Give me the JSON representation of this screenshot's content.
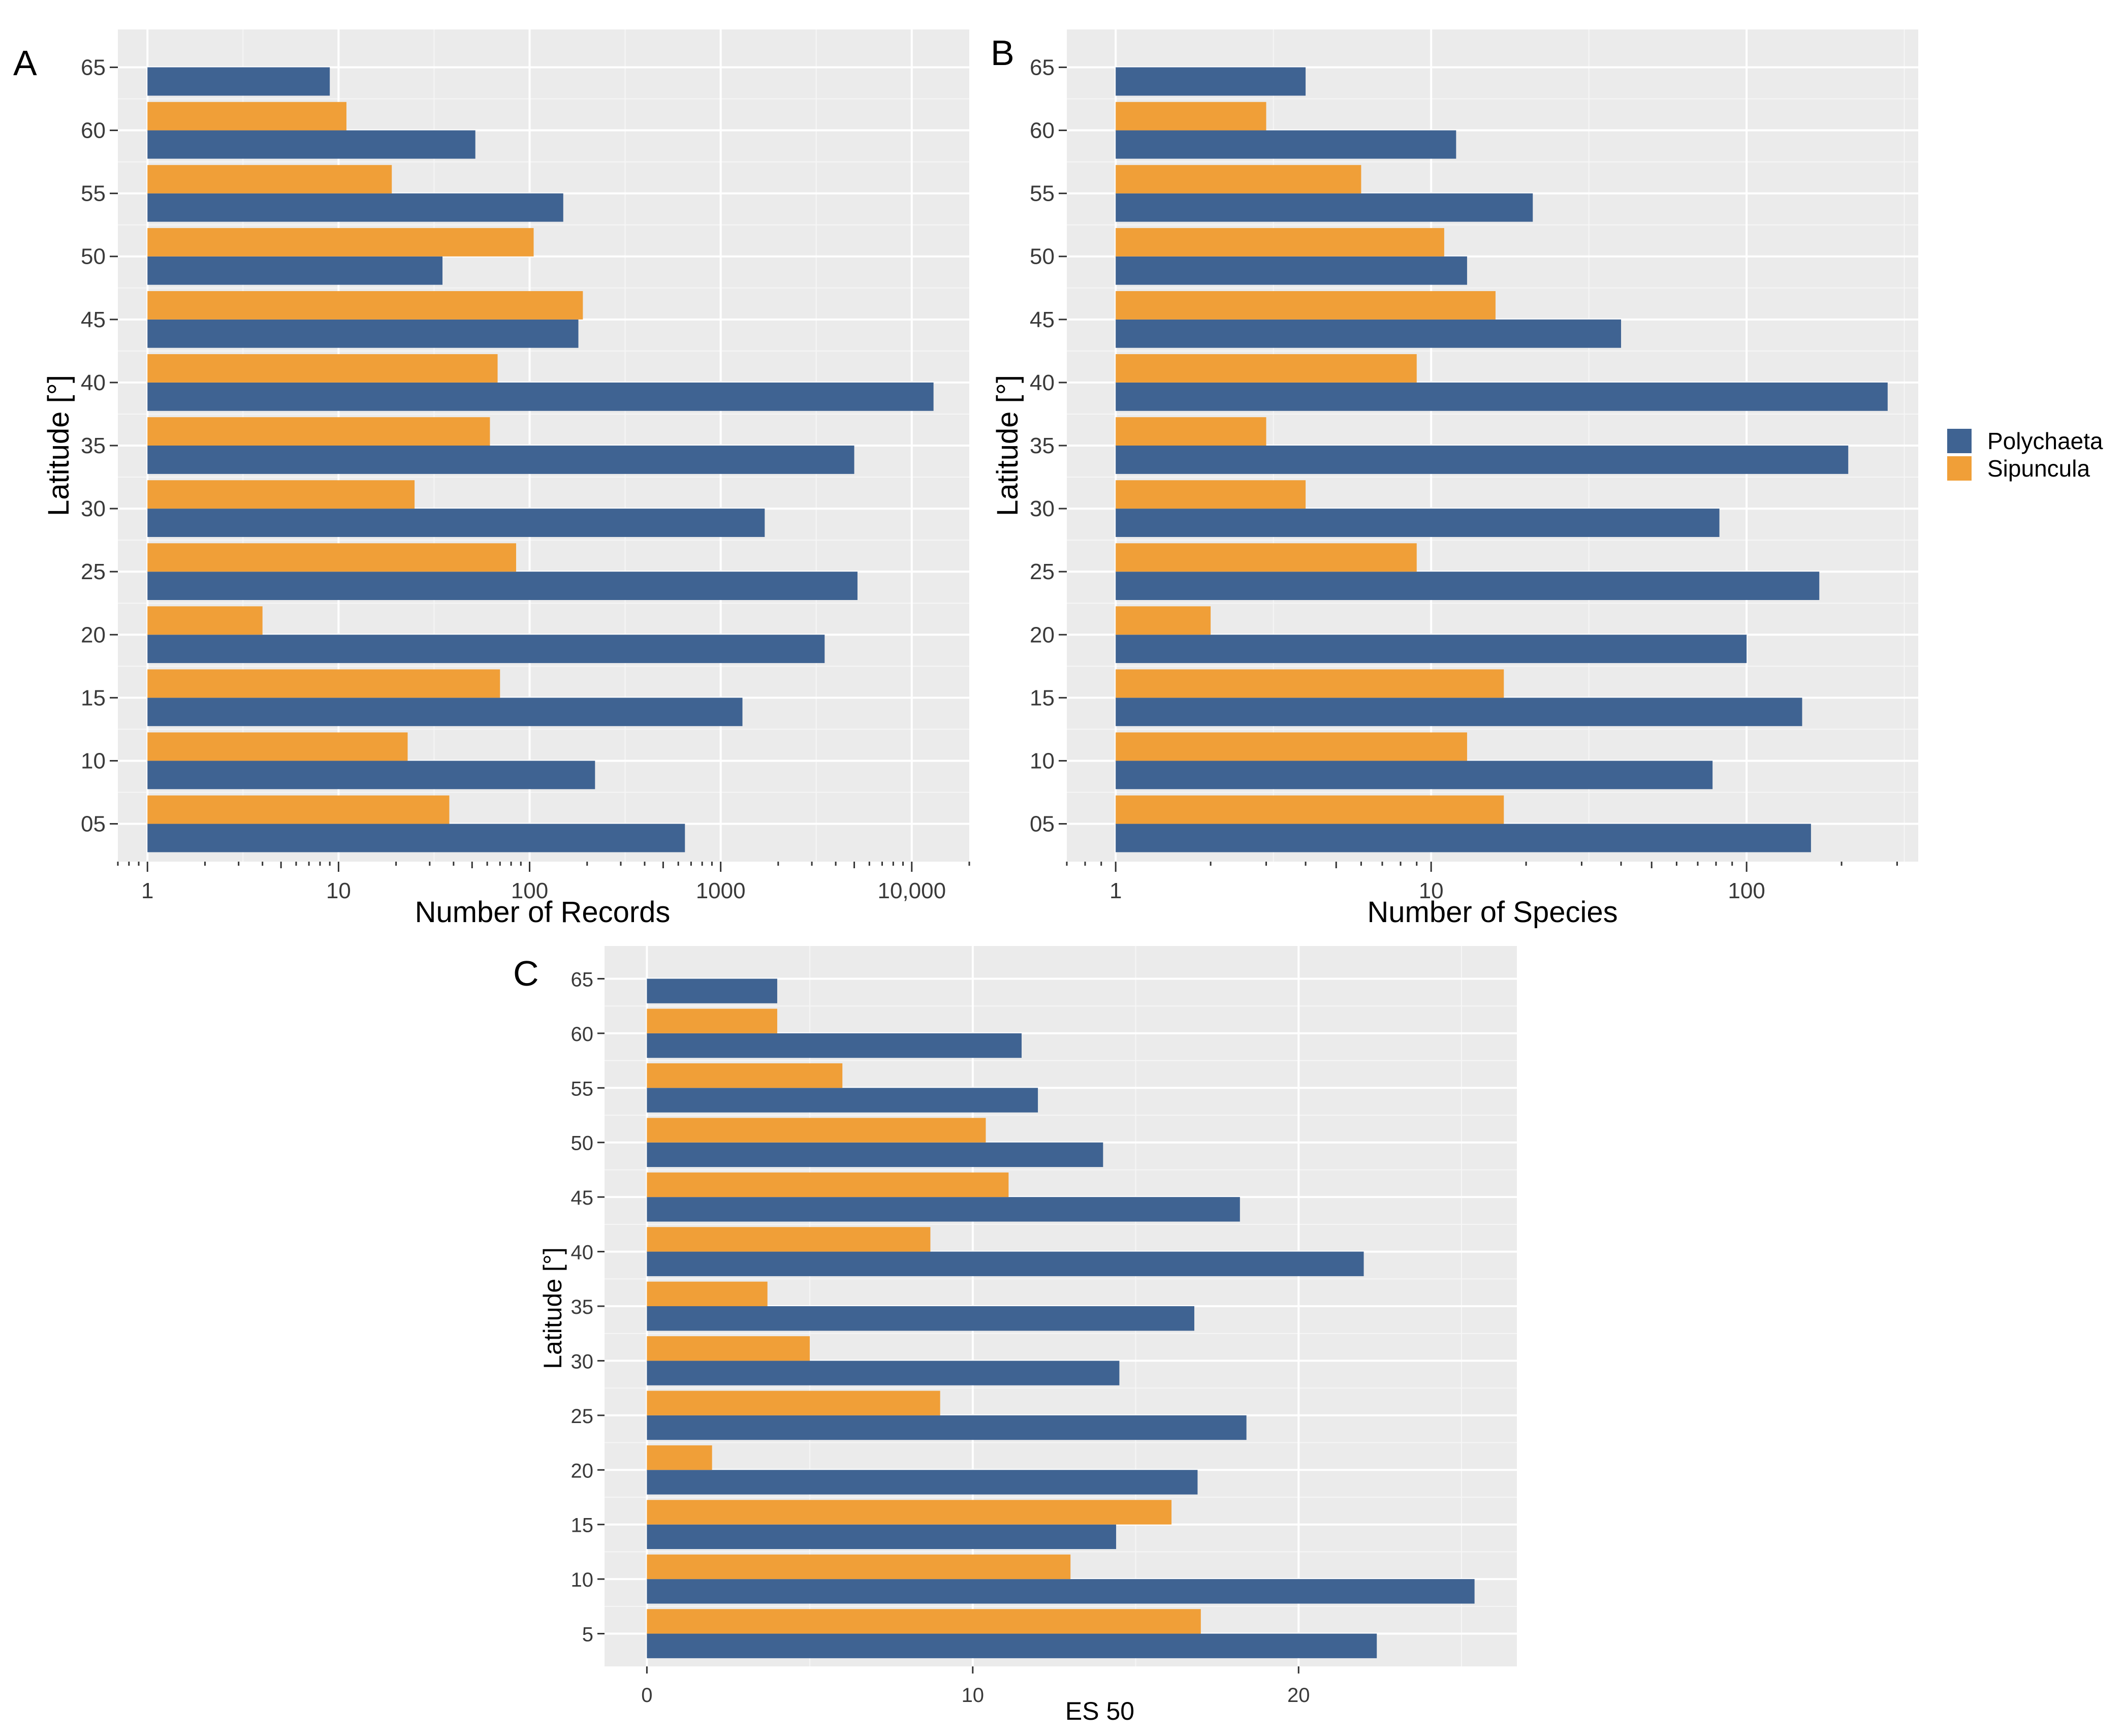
{
  "colors": {
    "polychaeta": "#3f6392",
    "sipuncula": "#f09f38",
    "panel_bg": "#ebebeb"
  },
  "legend": {
    "items": [
      {
        "label": "Polychaeta",
        "color": "#3f6392"
      },
      {
        "label": "Sipuncula",
        "color": "#f09f38"
      }
    ]
  },
  "chart_data": [
    {
      "panel": "A",
      "type": "bar",
      "orientation": "horizontal",
      "xscale": "log10",
      "xlabel": "Number of Records",
      "ylabel": "Latitude [°]",
      "xlim": [
        0.7,
        20000
      ],
      "x_ticks": [
        {
          "value": 1,
          "label": "1"
        },
        {
          "value": 10,
          "label": "10"
        },
        {
          "value": 100,
          "label": "100"
        },
        {
          "value": 1000,
          "label": "1000"
        },
        {
          "value": 10000,
          "label": "10,000"
        }
      ],
      "categories": [
        "05",
        "10",
        "15",
        "20",
        "25",
        "30",
        "35",
        "40",
        "45",
        "50",
        "55",
        "60",
        "65"
      ],
      "series": [
        {
          "name": "Polychaeta",
          "values": [
            650,
            220,
            1300,
            3500,
            5200,
            1700,
            5000,
            13000,
            180,
            35,
            150,
            52,
            9
          ]
        },
        {
          "name": "Sipuncula",
          "values": [
            38,
            23,
            70,
            4,
            85,
            25,
            62,
            68,
            190,
            105,
            19,
            11,
            null
          ]
        }
      ]
    },
    {
      "panel": "B",
      "type": "bar",
      "orientation": "horizontal",
      "xscale": "log10",
      "xlabel": "Number of Species",
      "ylabel": "Latitude [°]",
      "xlim": [
        0.7,
        350
      ],
      "x_ticks": [
        {
          "value": 1,
          "label": "1"
        },
        {
          "value": 10,
          "label": "10"
        },
        {
          "value": 100,
          "label": "100"
        }
      ],
      "categories": [
        "05",
        "10",
        "15",
        "20",
        "25",
        "30",
        "35",
        "40",
        "45",
        "50",
        "55",
        "60",
        "65"
      ],
      "series": [
        {
          "name": "Polychaeta",
          "values": [
            160,
            78,
            150,
            100,
            170,
            82,
            210,
            280,
            40,
            13,
            21,
            12,
            4
          ]
        },
        {
          "name": "Sipuncula",
          "values": [
            17,
            13,
            17,
            2,
            9,
            4,
            3,
            9,
            16,
            11,
            6,
            3,
            null
          ]
        }
      ]
    },
    {
      "panel": "C",
      "type": "bar",
      "orientation": "horizontal",
      "xscale": "linear",
      "xlabel": "ES 50",
      "ylabel": "Latitude [°]",
      "xlim": [
        -1.3,
        26.7
      ],
      "x_ticks": [
        {
          "value": 0,
          "label": "0"
        },
        {
          "value": 10,
          "label": "10"
        },
        {
          "value": 20,
          "label": "20"
        }
      ],
      "categories": [
        "5",
        "10",
        "15",
        "20",
        "25",
        "30",
        "35",
        "40",
        "45",
        "50",
        "55",
        "60",
        "65"
      ],
      "series": [
        {
          "name": "Polychaeta",
          "values": [
            22.4,
            25.4,
            14.4,
            16.9,
            18.4,
            14.5,
            16.8,
            22.0,
            18.2,
            14.0,
            12.0,
            11.5,
            4.0
          ]
        },
        {
          "name": "Sipuncula",
          "values": [
            17.0,
            13.0,
            16.1,
            2.0,
            9.0,
            5.0,
            3.7,
            8.7,
            11.1,
            10.4,
            6.0,
            4.0,
            null
          ]
        }
      ]
    }
  ]
}
